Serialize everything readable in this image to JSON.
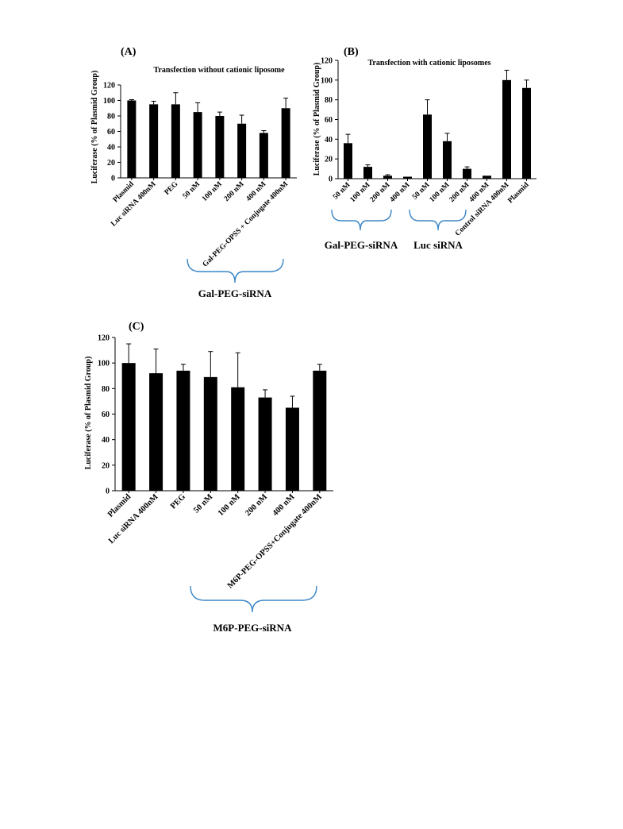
{
  "chart_data": [
    {
      "panel": "(A)",
      "type": "bar",
      "title": "Transfection without cationic liposome",
      "ylabel": "Luciferase (% of Plasmid Group)",
      "xlabel": "",
      "ylim": [
        0,
        120
      ],
      "yticks": [
        0,
        20,
        40,
        60,
        80,
        100,
        120
      ],
      "categories": [
        "Plasmid",
        "Luc siRNA 400nM",
        "PEG",
        "50 nM",
        "100 nM",
        "200 nM",
        "400 nM",
        "Gal-PEG-OPSS + Conjugate 400nM"
      ],
      "values": [
        100,
        95,
        95,
        85,
        80,
        70,
        58,
        90
      ],
      "errors": [
        1,
        4,
        15,
        12,
        5,
        11,
        3,
        13
      ],
      "group_label": "Gal-PEG-siRNA",
      "bar_color": "#000000",
      "bracket_color": "#3b86c6",
      "grid": false
    },
    {
      "panel": "(B)",
      "type": "bar",
      "title": "Transfection with cationic liposomes",
      "ylabel": "Luciferase (% of Plasmid Group)",
      "xlabel": "",
      "ylim": [
        0,
        120
      ],
      "yticks": [
        0,
        20,
        40,
        60,
        80,
        100,
        120
      ],
      "categories": [
        "50 nM",
        "100 nM",
        "200 nM",
        "400 nM",
        "50 nM",
        "100 nM",
        "200 nM",
        "400 nM",
        "Control siRNA 400nM",
        "Plasmid"
      ],
      "values": [
        36,
        12,
        3,
        2,
        65,
        38,
        10,
        3,
        100,
        92
      ],
      "errors": [
        9,
        2,
        1,
        0,
        15,
        8,
        2,
        0,
        10,
        8
      ],
      "group_labels": [
        "Gal-PEG-siRNA",
        "Luc siRNA"
      ],
      "bar_color": "#000000",
      "bracket_color": "#3b86c6",
      "grid": false
    },
    {
      "panel": "(C)",
      "type": "bar",
      "title": "",
      "ylabel": "Luciferase (% of Plasmid Group)",
      "xlabel": "",
      "ylim": [
        0,
        120
      ],
      "yticks": [
        0,
        20,
        40,
        60,
        80,
        100,
        120
      ],
      "categories": [
        "Plasmid",
        "Luc siRNA 400nM",
        "PEG",
        "50 nM",
        "100 nM",
        "200 nM",
        "400 nM",
        "M6P-PEG-OPSS+Conjugate 400nM"
      ],
      "values": [
        100,
        92,
        94,
        89,
        81,
        73,
        65,
        94
      ],
      "errors": [
        15,
        19,
        5,
        20,
        27,
        6,
        9,
        5
      ],
      "group_label": "M6P-PEG-siRNA",
      "bar_color": "#000000",
      "bracket_color": "#3b86c6",
      "grid": false
    }
  ]
}
